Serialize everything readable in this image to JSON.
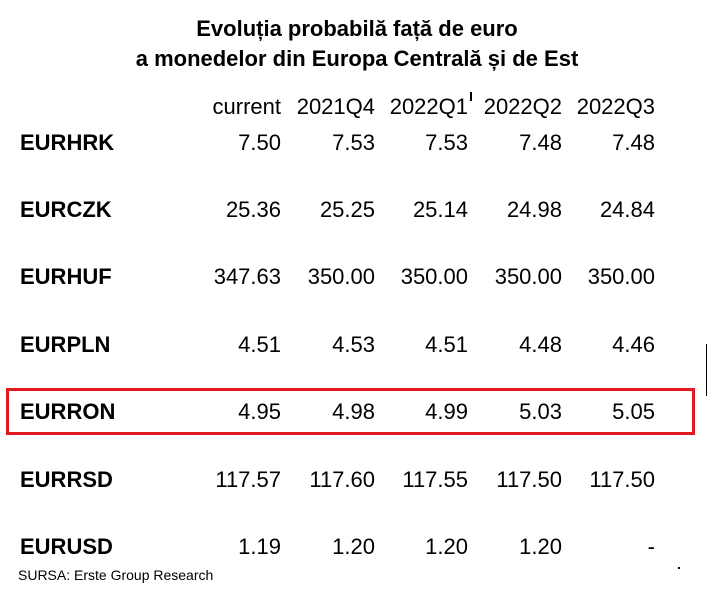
{
  "title": {
    "line1": "Evoluția probabilă față de euro",
    "line2": "a monedelor din Europa Centrală și de Est"
  },
  "columns": [
    "current",
    "2021Q4",
    "2022Q1",
    "2022Q2",
    "2022Q3"
  ],
  "rows": [
    {
      "code": "EURHRK",
      "values": [
        "7.50",
        "7.53",
        "7.53",
        "7.48",
        "7.48"
      ]
    },
    {
      "code": "EURCZK",
      "values": [
        "25.36",
        "25.25",
        "25.14",
        "24.98",
        "24.84"
      ]
    },
    {
      "code": "EURHUF",
      "values": [
        "347.63",
        "350.00",
        "350.00",
        "350.00",
        "350.00"
      ]
    },
    {
      "code": "EURPLN",
      "values": [
        "4.51",
        "4.53",
        "4.51",
        "4.48",
        "4.46"
      ]
    },
    {
      "code": "EURRON",
      "values": [
        "4.95",
        "4.98",
        "4.99",
        "5.03",
        "5.05"
      ]
    },
    {
      "code": "EURRSD",
      "values": [
        "117.57",
        "117.60",
        "117.55",
        "117.50",
        "117.50"
      ]
    },
    {
      "code": "EURUSD",
      "values": [
        "1.19",
        "1.20",
        "1.20",
        "1.20",
        "-"
      ]
    }
  ],
  "highlighted_row": "EURRON",
  "highlight_color": "#e0181f",
  "source": "SURSA: Erste Group Research"
}
